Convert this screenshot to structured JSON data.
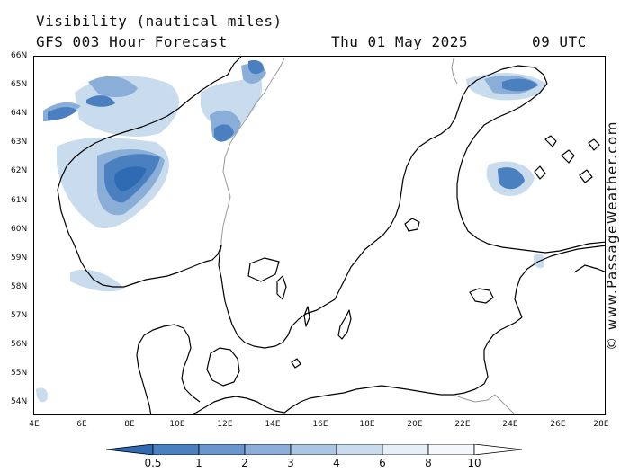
{
  "header": {
    "line1": "Visibility (nautical miles)",
    "line2": "GFS 003 Hour Forecast",
    "date": "Thu 01 May 2025",
    "time": "09 UTC"
  },
  "axes": {
    "lat_labels": [
      "66N",
      "65N",
      "64N",
      "63N",
      "62N",
      "61N",
      "60N",
      "59N",
      "58N",
      "57N",
      "56N",
      "55N",
      "54N"
    ],
    "lon_labels": [
      "4E",
      "6E",
      "8E",
      "10E",
      "12E",
      "14E",
      "16E",
      "18E",
      "20E",
      "22E",
      "24E",
      "26E",
      "28E"
    ],
    "lat_range": [
      53.8,
      66.0
    ],
    "lon_range": [
      4.0,
      28.0
    ]
  },
  "legend": {
    "labels": [
      "0.5",
      "1",
      "2",
      "3",
      "4",
      "6",
      "8",
      "10"
    ],
    "colors": [
      "#2f6bb3",
      "#4a80c0",
      "#6996cc",
      "#8aaed8",
      "#aac6e4",
      "#c9dcee",
      "#e6eff8",
      "#ffffff"
    ]
  },
  "watermark": "© www.PassageWeather.com",
  "colors": {
    "land_outline": "#000000",
    "border": "#9a9a9a",
    "fog_low": "#2f6bb3",
    "fog_mid": "#6996cc",
    "fog_light": "#aac6e4"
  }
}
